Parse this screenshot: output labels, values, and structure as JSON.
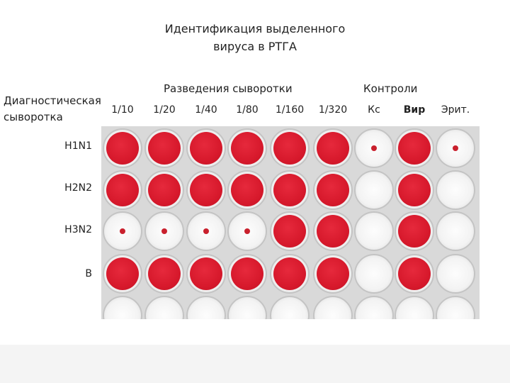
{
  "title": {
    "line1": "Идентификация выделенного",
    "line2": "вируса в РТГА"
  },
  "headers": {
    "dilutions": "Разведения сыворотки",
    "controls": "Контроли"
  },
  "diagnostic": {
    "line1": "Диагностическая",
    "line2": "сыворотка"
  },
  "columns": [
    "1/10",
    "1/20",
    "1/40",
    "1/80",
    "1/160",
    "1/320",
    "Кс",
    "Вир",
    "Эрит."
  ],
  "rows": [
    {
      "label": "H1N1",
      "wells": [
        "red",
        "red",
        "red",
        "red",
        "red",
        "red",
        "dot",
        "red",
        "dot"
      ]
    },
    {
      "label": "H2N2",
      "wells": [
        "red",
        "red",
        "red",
        "red",
        "red",
        "red",
        "empty",
        "red",
        "empty"
      ]
    },
    {
      "label": "H3N2",
      "wells": [
        "dot",
        "dot",
        "dot",
        "dot",
        "red",
        "red",
        "empty",
        "red",
        "empty"
      ]
    },
    {
      "label": "B",
      "wells": [
        "red",
        "red",
        "red",
        "red",
        "red",
        "red",
        "empty",
        "red",
        "empty"
      ]
    }
  ]
}
